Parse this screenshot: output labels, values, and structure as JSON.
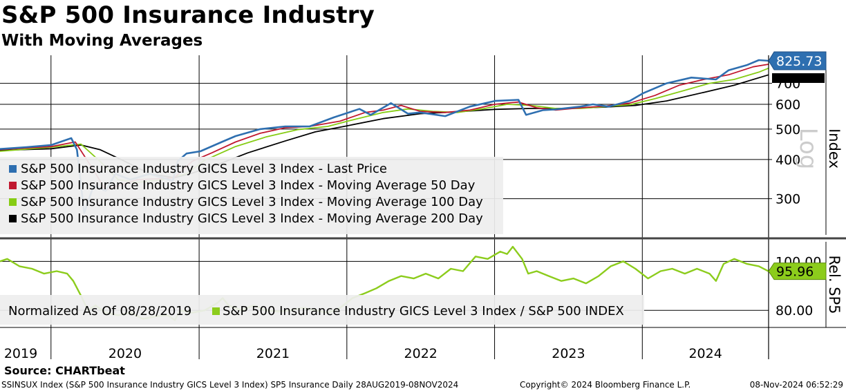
{
  "header": {
    "title": "S&P 500 Insurance Industry",
    "subtitle": "With Moving Averages"
  },
  "footer": {
    "source": "Source: CHARTbeat",
    "left": "SSINSUX Index (S&P 500 Insurance Industry GICS Level 3 Index) SP5 Insurance  Daily 28AUG2019-08NOV2024",
    "center": "Copyright© 2024 Bloomberg Finance L.P.",
    "right": "08-Nov-2024 06:52:29"
  },
  "colors": {
    "last_price": "#2e6fb0",
    "ma50": "#c0182f",
    "ma100": "#86cc14",
    "ma200": "#000000",
    "relative": "#8ccc1c",
    "grid": "#000000",
    "legend_bg": "#eeeeee"
  },
  "chart_data": [
    {
      "type": "line",
      "panel": "upper",
      "yscale": "log",
      "ylabel": "Index",
      "scale_label": "Log",
      "ylim": [
        230,
        860
      ],
      "y_ticks": [
        300,
        400,
        500,
        600,
        700
      ],
      "x_ticks": [
        "2019",
        "2020",
        "2021",
        "2022",
        "2023",
        "2024"
      ],
      "x_range": [
        "2019-08-28",
        "2024-11-08"
      ],
      "last_value_label": "825.73",
      "grid": true,
      "legend_placement": "lower-left",
      "series": [
        {
          "name": "S&P 500 Insurance Industry GICS Level 3 Index - Last Price",
          "key": "last",
          "points": [
            [
              "2019-08-28",
              432
            ],
            [
              "2019-11-01",
              438
            ],
            [
              "2020-01-02",
              445
            ],
            [
              "2020-02-20",
              468
            ],
            [
              "2020-03-05",
              430
            ],
            [
              "2020-03-12",
              360
            ],
            [
              "2020-03-23",
              270
            ],
            [
              "2020-04-15",
              330
            ],
            [
              "2020-05-15",
              318
            ],
            [
              "2020-06-08",
              360
            ],
            [
              "2020-07-15",
              345
            ],
            [
              "2020-09-01",
              360
            ],
            [
              "2020-10-28",
              342
            ],
            [
              "2020-11-09",
              395
            ],
            [
              "2020-12-01",
              418
            ],
            [
              "2021-01-04",
              425
            ],
            [
              "2021-02-26",
              455
            ],
            [
              "2021-04-01",
              475
            ],
            [
              "2021-06-01",
              500
            ],
            [
              "2021-08-02",
              510
            ],
            [
              "2021-10-01",
              510
            ],
            [
              "2021-11-30",
              545
            ],
            [
              "2022-02-01",
              580
            ],
            [
              "2022-03-01",
              555
            ],
            [
              "2022-04-20",
              605
            ],
            [
              "2022-06-01",
              560
            ],
            [
              "2022-07-01",
              565
            ],
            [
              "2022-09-01",
              550
            ],
            [
              "2022-11-01",
              590
            ],
            [
              "2023-01-02",
              615
            ],
            [
              "2023-03-01",
              620
            ],
            [
              "2023-03-20",
              555
            ],
            [
              "2023-05-01",
              575
            ],
            [
              "2023-06-01",
              578
            ],
            [
              "2023-08-01",
              590
            ],
            [
              "2023-09-01",
              600
            ],
            [
              "2023-10-10",
              590
            ],
            [
              "2023-12-01",
              615
            ],
            [
              "2024-01-02",
              650
            ],
            [
              "2024-03-01",
              700
            ],
            [
              "2024-05-01",
              730
            ],
            [
              "2024-07-01",
              720
            ],
            [
              "2024-08-01",
              770
            ],
            [
              "2024-09-15",
              800
            ],
            [
              "2024-10-15",
              830
            ],
            [
              "2024-11-08",
              825.73
            ]
          ]
        },
        {
          "name": "S&P 500 Insurance Industry GICS Level 3 Index - Moving Average 50 Day",
          "key": "ma50",
          "points": [
            [
              "2019-08-28",
              430
            ],
            [
              "2020-01-02",
              440
            ],
            [
              "2020-03-01",
              455
            ],
            [
              "2020-04-15",
              370
            ],
            [
              "2020-05-15",
              320
            ],
            [
              "2020-06-15",
              330
            ],
            [
              "2020-08-01",
              345
            ],
            [
              "2020-10-01",
              348
            ],
            [
              "2020-11-01",
              350
            ],
            [
              "2020-12-15",
              395
            ],
            [
              "2021-02-01",
              420
            ],
            [
              "2021-04-01",
              455
            ],
            [
              "2021-06-01",
              485
            ],
            [
              "2021-08-01",
              505
            ],
            [
              "2021-10-01",
              510
            ],
            [
              "2021-12-15",
              530
            ],
            [
              "2022-02-15",
              565
            ],
            [
              "2022-04-01",
              575
            ],
            [
              "2022-05-15",
              595
            ],
            [
              "2022-07-01",
              570
            ],
            [
              "2022-09-01",
              565
            ],
            [
              "2022-11-01",
              575
            ],
            [
              "2023-01-01",
              600
            ],
            [
              "2023-03-01",
              610
            ],
            [
              "2023-04-15",
              585
            ],
            [
              "2023-06-01",
              575
            ],
            [
              "2023-08-01",
              585
            ],
            [
              "2023-10-01",
              592
            ],
            [
              "2023-12-01",
              605
            ],
            [
              "2024-02-01",
              640
            ],
            [
              "2024-04-01",
              690
            ],
            [
              "2024-06-01",
              720
            ],
            [
              "2024-08-01",
              745
            ],
            [
              "2024-10-01",
              790
            ],
            [
              "2024-11-08",
              805
            ]
          ]
        },
        {
          "name": "S&P 500 Insurance Industry GICS Level 3 Index - Moving Average 100 Day",
          "key": "ma100",
          "points": [
            [
              "2019-08-28",
              425
            ],
            [
              "2020-01-02",
              438
            ],
            [
              "2020-03-15",
              448
            ],
            [
              "2020-05-01",
              395
            ],
            [
              "2020-06-15",
              345
            ],
            [
              "2020-08-01",
              338
            ],
            [
              "2020-10-01",
              345
            ],
            [
              "2020-12-01",
              360
            ],
            [
              "2021-01-15",
              398
            ],
            [
              "2021-04-01",
              440
            ],
            [
              "2021-06-15",
              472
            ],
            [
              "2021-09-01",
              498
            ],
            [
              "2021-11-15",
              510
            ],
            [
              "2022-01-15",
              535
            ],
            [
              "2022-04-01",
              565
            ],
            [
              "2022-06-01",
              580
            ],
            [
              "2022-08-01",
              570
            ],
            [
              "2022-10-01",
              565
            ],
            [
              "2022-12-01",
              580
            ],
            [
              "2023-02-01",
              600
            ],
            [
              "2023-04-01",
              595
            ],
            [
              "2023-06-01",
              582
            ],
            [
              "2023-08-01",
              582
            ],
            [
              "2023-10-01",
              590
            ],
            [
              "2023-12-01",
              598
            ],
            [
              "2024-02-01",
              625
            ],
            [
              "2024-04-15",
              665
            ],
            [
              "2024-06-15",
              700
            ],
            [
              "2024-08-15",
              720
            ],
            [
              "2024-10-15",
              760
            ],
            [
              "2024-11-08",
              782
            ]
          ]
        },
        {
          "name": "S&P 500 Insurance Industry GICS Level 3 Index - Moving Average 200 Day",
          "key": "ma200",
          "points": [
            [
              "2019-08-28",
              428
            ],
            [
              "2020-01-02",
              433
            ],
            [
              "2020-03-15",
              445
            ],
            [
              "2020-05-01",
              430
            ],
            [
              "2020-07-01",
              395
            ],
            [
              "2020-09-01",
              360
            ],
            [
              "2020-11-01",
              350
            ],
            [
              "2020-12-15",
              362
            ],
            [
              "2021-02-15",
              385
            ],
            [
              "2021-05-01",
              420
            ],
            [
              "2021-08-01",
              458
            ],
            [
              "2021-10-15",
              490
            ],
            [
              "2022-01-01",
              512
            ],
            [
              "2022-04-01",
              540
            ],
            [
              "2022-07-01",
              560
            ],
            [
              "2022-10-01",
              568
            ],
            [
              "2023-01-01",
              578
            ],
            [
              "2023-04-01",
              582
            ],
            [
              "2023-07-01",
              582
            ],
            [
              "2023-10-01",
              588
            ],
            [
              "2023-12-15",
              595
            ],
            [
              "2024-03-01",
              615
            ],
            [
              "2024-06-01",
              655
            ],
            [
              "2024-08-15",
              690
            ],
            [
              "2024-11-08",
              745
            ]
          ]
        }
      ]
    },
    {
      "type": "line",
      "panel": "lower",
      "ylabel": "Rel. SP5",
      "ylim": [
        73,
        108
      ],
      "y_ticks": [
        80,
        100
      ],
      "y_tick_labels": [
        "80.00",
        "100.00"
      ],
      "last_value_label": "95.96",
      "normalized_label": "Normalized As Of 08/28/2019",
      "grid": true,
      "legend_placement": "lower-left",
      "series": [
        {
          "name": "S&P 500 Insurance Industry GICS Level 3 Index / S&P 500 INDEX",
          "key": "rel",
          "points": [
            [
              "2019-08-28",
              100
            ],
            [
              "2019-09-15",
              101
            ],
            [
              "2019-10-15",
              98
            ],
            [
              "2019-11-15",
              97
            ],
            [
              "2019-12-15",
              95
            ],
            [
              "2020-01-15",
              96
            ],
            [
              "2020-02-10",
              95
            ],
            [
              "2020-02-25",
              92
            ],
            [
              "2020-03-15",
              86
            ],
            [
              "2020-04-01",
              80
            ],
            [
              "2020-04-20",
              82
            ],
            [
              "2020-05-15",
              79
            ],
            [
              "2020-06-15",
              78
            ],
            [
              "2020-07-15",
              79
            ],
            [
              "2020-08-15",
              76.5
            ],
            [
              "2020-09-15",
              77.5
            ],
            [
              "2020-10-15",
              78
            ],
            [
              "2020-11-02",
              76
            ],
            [
              "2020-11-15",
              80
            ],
            [
              "2020-12-15",
              79
            ],
            [
              "2021-01-15",
              80
            ],
            [
              "2021-02-15",
              83
            ],
            [
              "2021-02-28",
              85
            ],
            [
              "2021-03-15",
              82
            ],
            [
              "2021-04-15",
              80
            ],
            [
              "2021-05-15",
              82
            ],
            [
              "2021-06-15",
              80
            ],
            [
              "2021-07-15",
              79.5
            ],
            [
              "2021-08-15",
              80
            ],
            [
              "2021-09-15",
              81
            ],
            [
              "2021-10-15",
              80
            ],
            [
              "2021-11-15",
              79
            ],
            [
              "2021-12-15",
              81
            ],
            [
              "2022-01-15",
              85
            ],
            [
              "2022-02-15",
              87
            ],
            [
              "2022-03-15",
              89
            ],
            [
              "2022-04-15",
              92
            ],
            [
              "2022-05-15",
              94
            ],
            [
              "2022-06-15",
              93
            ],
            [
              "2022-07-15",
              95
            ],
            [
              "2022-08-15",
              93
            ],
            [
              "2022-09-15",
              97
            ],
            [
              "2022-10-15",
              96
            ],
            [
              "2022-11-15",
              102
            ],
            [
              "2022-12-15",
              101
            ],
            [
              "2023-01-15",
              104
            ],
            [
              "2023-02-01",
              103
            ],
            [
              "2023-02-15",
              106
            ],
            [
              "2023-03-10",
              101
            ],
            [
              "2023-03-25",
              95
            ],
            [
              "2023-04-15",
              96
            ],
            [
              "2023-05-15",
              94
            ],
            [
              "2023-06-15",
              92
            ],
            [
              "2023-07-15",
              93
            ],
            [
              "2023-08-15",
              91
            ],
            [
              "2023-09-15",
              94
            ],
            [
              "2023-10-15",
              98
            ],
            [
              "2023-11-15",
              100
            ],
            [
              "2023-12-15",
              97
            ],
            [
              "2024-01-15",
              93
            ],
            [
              "2024-02-15",
              96
            ],
            [
              "2024-03-15",
              97
            ],
            [
              "2024-04-15",
              95
            ],
            [
              "2024-05-15",
              97
            ],
            [
              "2024-06-15",
              95
            ],
            [
              "2024-07-01",
              92
            ],
            [
              "2024-07-20",
              99
            ],
            [
              "2024-08-15",
              101
            ],
            [
              "2024-09-15",
              99
            ],
            [
              "2024-10-15",
              98
            ],
            [
              "2024-11-08",
              95.96
            ]
          ]
        }
      ]
    }
  ]
}
